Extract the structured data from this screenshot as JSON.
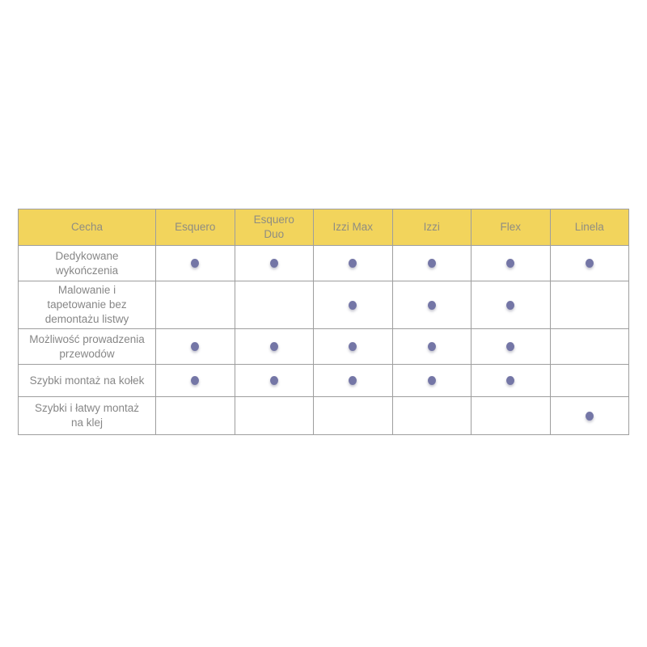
{
  "page": {
    "background": "#ffffff"
  },
  "colors": {
    "header_bg": "#F2D45C",
    "header_text": "#8f8d82",
    "body_text": "#878787",
    "border": "#9e9e9e",
    "dot": "#7476a6"
  },
  "chart_data": {
    "type": "table",
    "title": "",
    "columns": [
      "Cecha",
      "Esquero",
      "Esquero\nDuo",
      "Izzi Max",
      "Izzi",
      "Flex",
      "Linela"
    ],
    "products": [
      "Esquero",
      "Esquero Duo",
      "Izzi Max",
      "Izzi",
      "Flex",
      "Linela"
    ],
    "dot_meaning": "feature-available-dot",
    "rows": [
      {
        "feature": "Dedykowane\nwykończenia",
        "availability": [
          1,
          1,
          1,
          1,
          1,
          1
        ]
      },
      {
        "feature": "Malowanie i\ntapetowanie bez\ndemontażu listwy",
        "availability": [
          0,
          0,
          1,
          1,
          1,
          0
        ]
      },
      {
        "feature": "Możliwość prowadzenia\nprzewodów",
        "availability": [
          1,
          1,
          1,
          1,
          1,
          0
        ]
      },
      {
        "feature": "Szybki montaż na kołek",
        "availability": [
          1,
          1,
          1,
          1,
          1,
          0
        ]
      },
      {
        "feature": "Szybki i łatwy montaż\nna klej",
        "availability": [
          0,
          0,
          0,
          0,
          0,
          1
        ]
      }
    ]
  }
}
